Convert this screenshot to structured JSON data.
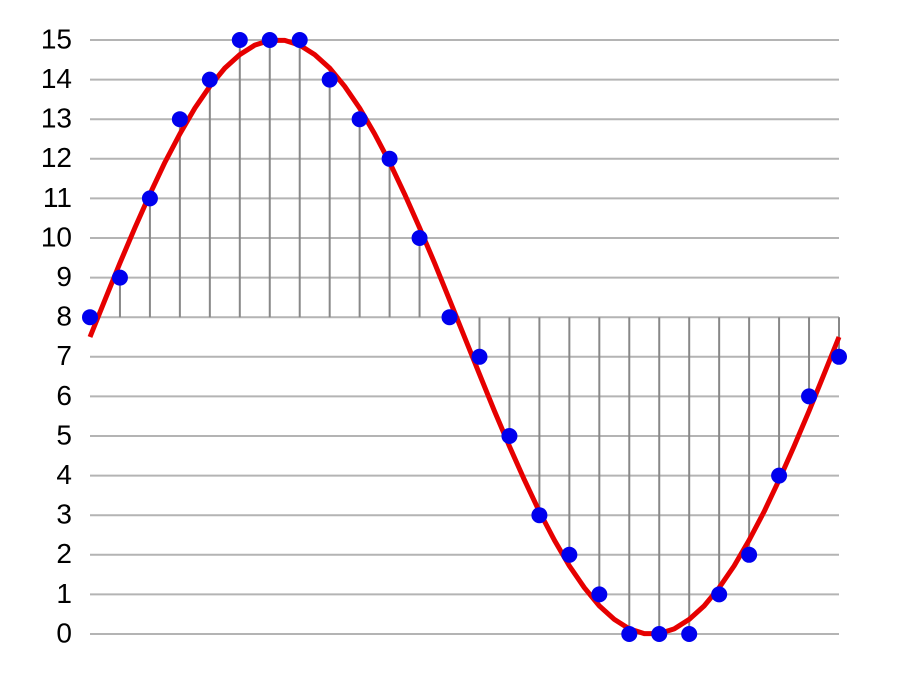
{
  "chart_data": {
    "type": "stem",
    "ylim": [
      0,
      15
    ],
    "yticks": [
      0,
      1,
      2,
      3,
      4,
      5,
      6,
      7,
      8,
      9,
      10,
      11,
      12,
      13,
      14,
      15
    ],
    "xlim": [
      0,
      25
    ],
    "grid": true,
    "baseline": 8,
    "series": [
      {
        "type": "line",
        "color": "#e60000",
        "x": [
          0,
          0.5,
          1,
          1.5,
          2,
          2.5,
          3,
          3.5,
          4,
          4.5,
          5,
          5.5,
          6,
          6.5,
          7,
          7.5,
          8,
          8.5,
          9,
          9.5,
          10,
          10.5,
          11,
          11.5,
          12,
          12.5,
          13,
          13.5,
          14,
          14.5,
          15,
          15.5,
          16,
          16.5,
          17,
          17.5,
          18,
          18.5,
          19,
          19.5,
          20,
          20.5,
          21,
          21.5,
          22,
          22.5,
          23,
          23.5,
          24,
          24.5,
          25
        ],
        "values": [
          7.5,
          8.44,
          9.37,
          10.26,
          11.11,
          11.91,
          12.63,
          13.28,
          13.83,
          14.29,
          14.63,
          14.87,
          14.99,
          14.99,
          14.87,
          14.63,
          14.29,
          13.83,
          13.28,
          12.63,
          11.91,
          11.11,
          10.26,
          9.37,
          8.44,
          7.5,
          6.56,
          5.63,
          4.74,
          3.89,
          3.09,
          2.37,
          1.72,
          1.17,
          0.71,
          0.37,
          0.13,
          0.01,
          0.01,
          0.13,
          0.37,
          0.71,
          1.17,
          1.72,
          2.37,
          3.09,
          3.89,
          4.74,
          5.63,
          6.56,
          7.5
        ]
      },
      {
        "type": "stem",
        "color": "#0000ee",
        "stem_color": "#888888",
        "x": [
          0,
          1,
          2,
          3,
          4,
          5,
          6,
          7,
          8,
          9,
          10,
          11,
          12,
          13,
          14,
          15,
          16,
          17,
          18,
          19,
          20,
          21,
          22,
          23,
          24,
          25
        ],
        "values": [
          8,
          9,
          11,
          13,
          14,
          15,
          15,
          15,
          14,
          13,
          12,
          10,
          8,
          7,
          5,
          3,
          2,
          1,
          0,
          0,
          0,
          1,
          2,
          4,
          6,
          7
        ]
      }
    ]
  }
}
